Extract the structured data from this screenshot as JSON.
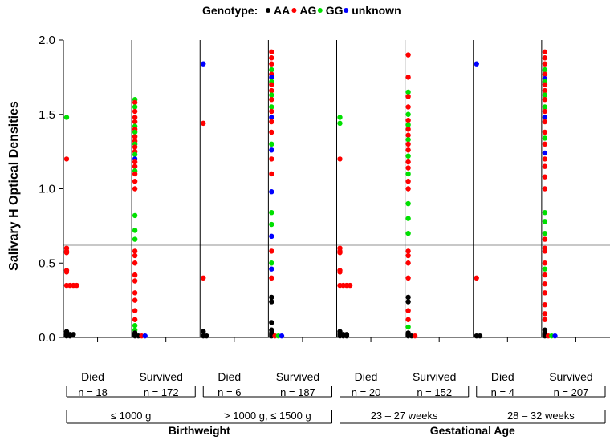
{
  "chart_data": {
    "type": "scatter",
    "ylabel": "Salivary H Optical Densities",
    "ylim": [
      0.0,
      2.0
    ],
    "yticks": [
      "0.0",
      "0.5",
      "1.0",
      "1.5",
      "2.0"
    ],
    "threshold": 0.62,
    "legend": {
      "title": "Genotype:",
      "placement": "top-center",
      "entries": [
        {
          "label": "AA",
          "color": "#000000"
        },
        {
          "label": "AG",
          "color": "#ff0000"
        },
        {
          "label": "GG",
          "color": "#00e000"
        },
        {
          "label": "unknown",
          "color": "#0000ff"
        }
      ]
    },
    "panels": [
      {
        "group": "Died",
        "n": "n = 18",
        "points": [
          {
            "g": "GG",
            "y": 1.48
          },
          {
            "g": "AG",
            "y": 1.2
          },
          {
            "g": "AG",
            "y": 0.6
          },
          {
            "g": "AG",
            "y": 0.58
          },
          {
            "g": "AG",
            "y": 0.57
          },
          {
            "g": "AG",
            "y": 0.45
          },
          {
            "g": "AG",
            "y": 0.44
          },
          {
            "g": "AG",
            "y": 0.35
          },
          {
            "g": "AG",
            "y": 0.35
          },
          {
            "g": "AG",
            "y": 0.35
          },
          {
            "g": "AG",
            "y": 0.35
          },
          {
            "g": "AA",
            "y": 0.04
          },
          {
            "g": "AA",
            "y": 0.03
          },
          {
            "g": "AA",
            "y": 0.02
          },
          {
            "g": "AA",
            "y": 0.02
          },
          {
            "g": "AA",
            "y": 0.02
          },
          {
            "g": "AA",
            "y": 0.01
          },
          {
            "g": "AA",
            "y": 0.01
          }
        ]
      },
      {
        "group": "Survived",
        "n": "n = 172",
        "points": [
          {
            "g": "GG",
            "y": 1.6
          },
          {
            "g": "AG",
            "y": 1.58
          },
          {
            "g": "GG",
            "y": 1.55
          },
          {
            "g": "AG",
            "y": 1.52
          },
          {
            "g": "AG",
            "y": 1.48
          },
          {
            "g": "AG",
            "y": 1.45
          },
          {
            "g": "GG",
            "y": 1.42
          },
          {
            "g": "AG",
            "y": 1.4
          },
          {
            "g": "GG",
            "y": 1.38
          },
          {
            "g": "AG",
            "y": 1.35
          },
          {
            "g": "AG",
            "y": 1.32
          },
          {
            "g": "GG",
            "y": 1.3
          },
          {
            "g": "AG",
            "y": 1.28
          },
          {
            "g": "AG",
            "y": 1.25
          },
          {
            "g": "GG",
            "y": 1.23
          },
          {
            "g": "unknown",
            "y": 1.2
          },
          {
            "g": "AG",
            "y": 1.18
          },
          {
            "g": "AG",
            "y": 1.15
          },
          {
            "g": "GG",
            "y": 1.12
          },
          {
            "g": "AG",
            "y": 1.1
          },
          {
            "g": "AG",
            "y": 1.05
          },
          {
            "g": "AG",
            "y": 1.0
          },
          {
            "g": "GG",
            "y": 0.82
          },
          {
            "g": "GG",
            "y": 0.72
          },
          {
            "g": "GG",
            "y": 0.66
          },
          {
            "g": "AG",
            "y": 0.58
          },
          {
            "g": "AG",
            "y": 0.55
          },
          {
            "g": "AG",
            "y": 0.5
          },
          {
            "g": "AG",
            "y": 0.42
          },
          {
            "g": "AG",
            "y": 0.38
          },
          {
            "g": "AG",
            "y": 0.3
          },
          {
            "g": "AG",
            "y": 0.25
          },
          {
            "g": "AG",
            "y": 0.18
          },
          {
            "g": "AG",
            "y": 0.12
          },
          {
            "g": "GG",
            "y": 0.08
          },
          {
            "g": "GG",
            "y": 0.05
          },
          {
            "g": "AA",
            "y": 0.03
          },
          {
            "g": "AA",
            "y": 0.02
          },
          {
            "g": "AA",
            "y": 0.01
          },
          {
            "g": "AA",
            "y": 0.01
          },
          {
            "g": "AG",
            "y": 0.01
          },
          {
            "g": "unknown",
            "y": 0.01
          }
        ]
      },
      {
        "group": "Died",
        "n": "n = 6",
        "points": [
          {
            "g": "unknown",
            "y": 1.84
          },
          {
            "g": "AG",
            "y": 1.44
          },
          {
            "g": "AG",
            "y": 0.4
          },
          {
            "g": "AA",
            "y": 0.04
          },
          {
            "g": "AA",
            "y": 0.01
          },
          {
            "g": "AA",
            "y": 0.01
          }
        ]
      },
      {
        "group": "Survived",
        "n": "n = 187",
        "points": [
          {
            "g": "AG",
            "y": 1.92
          },
          {
            "g": "AG",
            "y": 1.88
          },
          {
            "g": "AG",
            "y": 1.84
          },
          {
            "g": "GG",
            "y": 1.8
          },
          {
            "g": "AG",
            "y": 1.77
          },
          {
            "g": "unknown",
            "y": 1.75
          },
          {
            "g": "GG",
            "y": 1.72
          },
          {
            "g": "AG",
            "y": 1.7
          },
          {
            "g": "AG",
            "y": 1.66
          },
          {
            "g": "GG",
            "y": 1.63
          },
          {
            "g": "AG",
            "y": 1.6
          },
          {
            "g": "GG",
            "y": 1.55
          },
          {
            "g": "AG",
            "y": 1.52
          },
          {
            "g": "unknown",
            "y": 1.48
          },
          {
            "g": "AG",
            "y": 1.45
          },
          {
            "g": "AG",
            "y": 1.38
          },
          {
            "g": "GG",
            "y": 1.3
          },
          {
            "g": "unknown",
            "y": 1.26
          },
          {
            "g": "AG",
            "y": 1.2
          },
          {
            "g": "AG",
            "y": 1.1
          },
          {
            "g": "unknown",
            "y": 0.98
          },
          {
            "g": "GG",
            "y": 0.84
          },
          {
            "g": "GG",
            "y": 0.76
          },
          {
            "g": "unknown",
            "y": 0.68
          },
          {
            "g": "AG",
            "y": 0.58
          },
          {
            "g": "GG",
            "y": 0.5
          },
          {
            "g": "unknown",
            "y": 0.46
          },
          {
            "g": "AG",
            "y": 0.4
          },
          {
            "g": "AA",
            "y": 0.27
          },
          {
            "g": "AA",
            "y": 0.24
          },
          {
            "g": "AA",
            "y": 0.1
          },
          {
            "g": "AA",
            "y": 0.05
          },
          {
            "g": "AA",
            "y": 0.03
          },
          {
            "g": "AA",
            "y": 0.02
          },
          {
            "g": "AA",
            "y": 0.01
          },
          {
            "g": "AG",
            "y": 0.01
          },
          {
            "g": "GG",
            "y": 0.01
          },
          {
            "g": "unknown",
            "y": 0.01
          }
        ]
      },
      {
        "group": "Died",
        "n": "n = 20",
        "points": [
          {
            "g": "GG",
            "y": 1.48
          },
          {
            "g": "GG",
            "y": 1.44
          },
          {
            "g": "AG",
            "y": 1.2
          },
          {
            "g": "AG",
            "y": 0.6
          },
          {
            "g": "AG",
            "y": 0.58
          },
          {
            "g": "AG",
            "y": 0.57
          },
          {
            "g": "AG",
            "y": 0.45
          },
          {
            "g": "AG",
            "y": 0.44
          },
          {
            "g": "AG",
            "y": 0.35
          },
          {
            "g": "AG",
            "y": 0.35
          },
          {
            "g": "AG",
            "y": 0.35
          },
          {
            "g": "AG",
            "y": 0.35
          },
          {
            "g": "AA",
            "y": 0.04
          },
          {
            "g": "AA",
            "y": 0.03
          },
          {
            "g": "AA",
            "y": 0.02
          },
          {
            "g": "AA",
            "y": 0.02
          },
          {
            "g": "AA",
            "y": 0.02
          },
          {
            "g": "AA",
            "y": 0.01
          },
          {
            "g": "AA",
            "y": 0.01
          },
          {
            "g": "AA",
            "y": 0.01
          }
        ]
      },
      {
        "group": "Survived",
        "n": "n = 152",
        "points": [
          {
            "g": "AG",
            "y": 1.9
          },
          {
            "g": "AG",
            "y": 1.75
          },
          {
            "g": "GG",
            "y": 1.65
          },
          {
            "g": "AG",
            "y": 1.62
          },
          {
            "g": "AG",
            "y": 1.55
          },
          {
            "g": "GG",
            "y": 1.5
          },
          {
            "g": "AG",
            "y": 1.46
          },
          {
            "g": "GG",
            "y": 1.43
          },
          {
            "g": "AG",
            "y": 1.4
          },
          {
            "g": "AG",
            "y": 1.36
          },
          {
            "g": "GG",
            "y": 1.33
          },
          {
            "g": "AG",
            "y": 1.3
          },
          {
            "g": "AG",
            "y": 1.26
          },
          {
            "g": "GG",
            "y": 1.22
          },
          {
            "g": "AG",
            "y": 1.18
          },
          {
            "g": "AG",
            "y": 1.14
          },
          {
            "g": "GG",
            "y": 1.1
          },
          {
            "g": "AG",
            "y": 1.05
          },
          {
            "g": "AG",
            "y": 1.0
          },
          {
            "g": "GG",
            "y": 0.9
          },
          {
            "g": "GG",
            "y": 0.8
          },
          {
            "g": "GG",
            "y": 0.7
          },
          {
            "g": "AG",
            "y": 0.58
          },
          {
            "g": "AG",
            "y": 0.55
          },
          {
            "g": "AG",
            "y": 0.5
          },
          {
            "g": "AG",
            "y": 0.4
          },
          {
            "g": "AA",
            "y": 0.27
          },
          {
            "g": "AA",
            "y": 0.24
          },
          {
            "g": "AG",
            "y": 0.18
          },
          {
            "g": "AG",
            "y": 0.12
          },
          {
            "g": "GG",
            "y": 0.07
          },
          {
            "g": "AA",
            "y": 0.03
          },
          {
            "g": "AA",
            "y": 0.02
          },
          {
            "g": "AA",
            "y": 0.01
          },
          {
            "g": "AA",
            "y": 0.01
          },
          {
            "g": "AG",
            "y": 0.01
          }
        ]
      },
      {
        "group": "Died",
        "n": "n = 4",
        "points": [
          {
            "g": "unknown",
            "y": 1.84
          },
          {
            "g": "AG",
            "y": 0.4
          },
          {
            "g": "AA",
            "y": 0.01
          },
          {
            "g": "AA",
            "y": 0.01
          }
        ]
      },
      {
        "group": "Survived",
        "n": "n = 207",
        "points": [
          {
            "g": "AG",
            "y": 1.92
          },
          {
            "g": "AG",
            "y": 1.88
          },
          {
            "g": "AG",
            "y": 1.84
          },
          {
            "g": "GG",
            "y": 1.8
          },
          {
            "g": "AG",
            "y": 1.77
          },
          {
            "g": "unknown",
            "y": 1.74
          },
          {
            "g": "GG",
            "y": 1.72
          },
          {
            "g": "AG",
            "y": 1.7
          },
          {
            "g": "AG",
            "y": 1.66
          },
          {
            "g": "GG",
            "y": 1.63
          },
          {
            "g": "AG",
            "y": 1.6
          },
          {
            "g": "GG",
            "y": 1.55
          },
          {
            "g": "AG",
            "y": 1.52
          },
          {
            "g": "unknown",
            "y": 1.48
          },
          {
            "g": "AG",
            "y": 1.45
          },
          {
            "g": "AG",
            "y": 1.38
          },
          {
            "g": "GG",
            "y": 1.34
          },
          {
            "g": "AG",
            "y": 1.3
          },
          {
            "g": "unknown",
            "y": 1.24
          },
          {
            "g": "AG",
            "y": 1.2
          },
          {
            "g": "AG",
            "y": 1.15
          },
          {
            "g": "AG",
            "y": 1.08
          },
          {
            "g": "AG",
            "y": 1.0
          },
          {
            "g": "GG",
            "y": 0.84
          },
          {
            "g": "GG",
            "y": 0.78
          },
          {
            "g": "GG",
            "y": 0.7
          },
          {
            "g": "AG",
            "y": 0.66
          },
          {
            "g": "AG",
            "y": 0.6
          },
          {
            "g": "AG",
            "y": 0.58
          },
          {
            "g": "AG",
            "y": 0.5
          },
          {
            "g": "GG",
            "y": 0.46
          },
          {
            "g": "AG",
            "y": 0.42
          },
          {
            "g": "AG",
            "y": 0.36
          },
          {
            "g": "AG",
            "y": 0.3
          },
          {
            "g": "AG",
            "y": 0.22
          },
          {
            "g": "AG",
            "y": 0.16
          },
          {
            "g": "AG",
            "y": 0.12
          },
          {
            "g": "AA",
            "y": 0.05
          },
          {
            "g": "AA",
            "y": 0.03
          },
          {
            "g": "AA",
            "y": 0.02
          },
          {
            "g": "AA",
            "y": 0.01
          },
          {
            "g": "AG",
            "y": 0.01
          },
          {
            "g": "GG",
            "y": 0.01
          },
          {
            "g": "unknown",
            "y": 0.01
          }
        ]
      }
    ],
    "categories": [
      {
        "label": "≤ 1000 g",
        "panels": [
          0,
          1
        ]
      },
      {
        "label": "> 1000 g, ≤ 1500 g",
        "panels": [
          2,
          3
        ]
      },
      {
        "label": "23 – 27 weeks",
        "panels": [
          4,
          5
        ]
      },
      {
        "label": "28 – 32 weeks",
        "panels": [
          6,
          7
        ]
      }
    ],
    "sections": [
      {
        "label": "Birthweight",
        "categories": [
          0,
          1
        ]
      },
      {
        "label": "Gestational Age",
        "categories": [
          2,
          3
        ]
      }
    ]
  }
}
